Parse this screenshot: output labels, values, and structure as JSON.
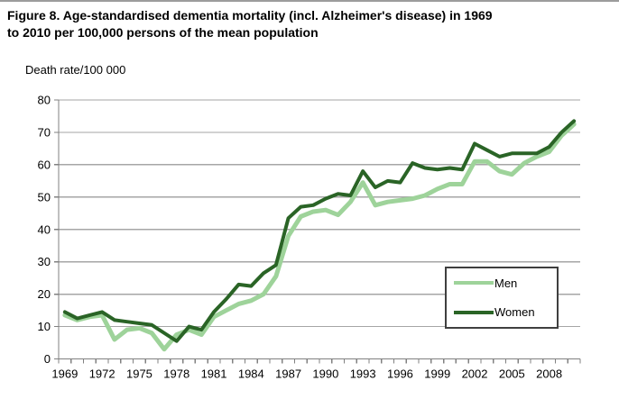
{
  "figure": {
    "title_line1": "Figure 8. Age-standardised dementia mortality (incl. Alzheimer's disease) in 1969",
    "title_line2": "to 2010 per 100,000 persons of the mean population"
  },
  "chart_data": {
    "type": "line",
    "title": "Figure 8. Age-standardised dementia mortality (incl. Alzheimer's disease) in 1969 to 2010 per 100,000 persons of the mean population",
    "ylabel": "Death rate/100 000",
    "xlabel": "",
    "ylim": [
      0,
      80
    ],
    "y_ticks": [
      0,
      10,
      20,
      30,
      40,
      50,
      60,
      70,
      80
    ],
    "x": [
      1969,
      1970,
      1971,
      1972,
      1973,
      1974,
      1975,
      1976,
      1977,
      1978,
      1979,
      1980,
      1981,
      1982,
      1983,
      1984,
      1985,
      1986,
      1987,
      1988,
      1989,
      1990,
      1991,
      1992,
      1993,
      1994,
      1995,
      1996,
      1997,
      1998,
      1999,
      2000,
      2001,
      2002,
      2003,
      2004,
      2005,
      2006,
      2007,
      2008,
      2009,
      2010
    ],
    "x_tick_labels": [
      "1969",
      "1972",
      "1975",
      "1978",
      "1981",
      "1984",
      "1987",
      "1990",
      "1993",
      "1996",
      "1999",
      "2002",
      "2005",
      "2008"
    ],
    "x_labeled_every": 3,
    "grid": true,
    "legend_position": "inside-right",
    "colors": {
      "gridline": "#a6a6a6",
      "axis": "#808080",
      "text": "#000000"
    },
    "series": [
      {
        "name": "Men",
        "color": "#9ed39a",
        "values": [
          13.5,
          12,
          13,
          13.5,
          6,
          9,
          9.5,
          8,
          3,
          7.5,
          9,
          7.5,
          13,
          15,
          17,
          18,
          20,
          25.5,
          38,
          44,
          45.5,
          46,
          44.5,
          48.5,
          54.5,
          47.5,
          48.5,
          49,
          49.5,
          50.5,
          52.5,
          54,
          54,
          61,
          61,
          58,
          57,
          60.5,
          62.5,
          64,
          69,
          72.5
        ]
      },
      {
        "name": "Women",
        "color": "#2a6426",
        "values": [
          14.5,
          12.5,
          13.5,
          14.5,
          12,
          11.5,
          11,
          10.5,
          8,
          5.5,
          10,
          9,
          14.5,
          18.5,
          23,
          22.5,
          26.5,
          29,
          43.5,
          47,
          47.5,
          49.5,
          51,
          50.5,
          58,
          53,
          55,
          54.5,
          60.5,
          59,
          58.5,
          59,
          58.5,
          66.5,
          64.5,
          62.5,
          63.5,
          63.5,
          63.5,
          65.5,
          70,
          73.5
        ]
      }
    ]
  }
}
